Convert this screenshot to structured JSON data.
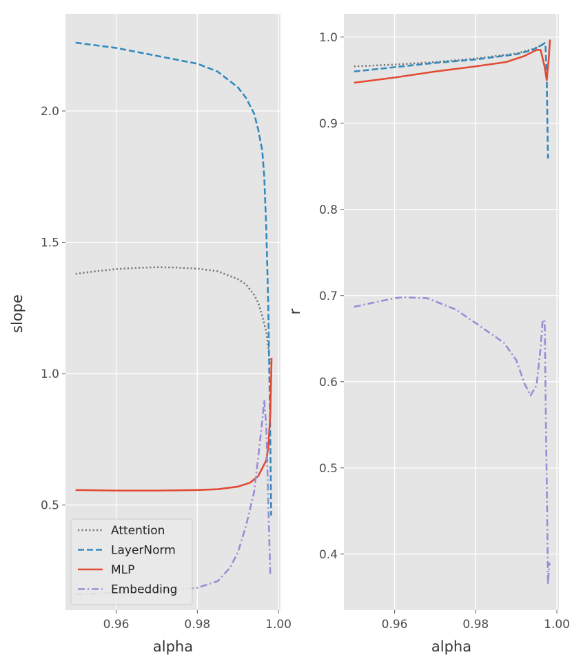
{
  "chart_data": [
    {
      "type": "line",
      "xlabel": "alpha",
      "ylabel": "slope",
      "xlim": [
        0.9475,
        1.0005
      ],
      "ylim": [
        0.1,
        2.37
      ],
      "xticks": [
        0.96,
        0.98,
        1.0
      ],
      "xtick_labels": [
        "0.96",
        "0.98",
        "1.00"
      ],
      "yticks": [
        0.5,
        1.0,
        1.5,
        2.0
      ],
      "ytick_labels": [
        "0.5",
        "1.0",
        "1.5",
        "2.0"
      ],
      "grid": true,
      "legend": {
        "position": "lower-left",
        "entries": [
          {
            "label": "Attention",
            "color": "#777777",
            "dash": "dotted"
          },
          {
            "label": "LayerNorm",
            "color": "#348abd",
            "dash": "dashed"
          },
          {
            "label": "MLP",
            "color": "#e24a33",
            "dash": "solid"
          },
          {
            "label": "Embedding",
            "color": "#988ed5",
            "dash": "dashdot"
          }
        ]
      },
      "series": [
        {
          "name": "Attention",
          "color": "#777777",
          "dash": "dotted",
          "x": [
            0.95,
            0.955,
            0.96,
            0.965,
            0.97,
            0.975,
            0.98,
            0.985,
            0.99,
            0.992,
            0.994,
            0.995,
            0.996,
            0.997,
            0.9975,
            0.998
          ],
          "y": [
            1.38,
            1.39,
            1.398,
            1.403,
            1.405,
            1.404,
            1.4,
            1.39,
            1.36,
            1.34,
            1.3,
            1.27,
            1.22,
            1.16,
            1.1,
            1.03
          ]
        },
        {
          "name": "LayerNorm",
          "color": "#348abd",
          "dash": "dashed",
          "x": [
            0.95,
            0.96,
            0.97,
            0.975,
            0.98,
            0.985,
            0.99,
            0.992,
            0.994,
            0.995,
            0.996,
            0.9965,
            0.997,
            0.9975,
            0.998,
            0.9982
          ],
          "y": [
            2.26,
            2.24,
            2.21,
            2.195,
            2.18,
            2.15,
            2.09,
            2.05,
            1.99,
            1.93,
            1.85,
            1.75,
            1.55,
            1.25,
            0.75,
            0.46
          ]
        },
        {
          "name": "MLP",
          "color": "#e24a33",
          "dash": "solid",
          "x": [
            0.95,
            0.96,
            0.97,
            0.98,
            0.985,
            0.99,
            0.993,
            0.995,
            0.996,
            0.997,
            0.9975,
            0.998,
            0.9983
          ],
          "y": [
            0.557,
            0.555,
            0.555,
            0.557,
            0.56,
            0.57,
            0.585,
            0.61,
            0.64,
            0.67,
            0.72,
            0.85,
            1.06
          ]
        },
        {
          "name": "Embedding",
          "color": "#988ed5",
          "dash": "dashdot",
          "x": [
            0.95,
            0.96,
            0.97,
            0.98,
            0.985,
            0.988,
            0.99,
            0.992,
            0.994,
            0.995,
            0.996,
            0.9965,
            0.997,
            0.9975,
            0.998
          ],
          "y": [
            0.16,
            0.165,
            0.17,
            0.185,
            0.21,
            0.26,
            0.32,
            0.42,
            0.55,
            0.68,
            0.82,
            0.9,
            0.8,
            0.5,
            0.23
          ]
        }
      ]
    },
    {
      "type": "line",
      "xlabel": "alpha",
      "ylabel": "r",
      "xlim": [
        0.9475,
        1.0005
      ],
      "ylim": [
        0.335,
        1.027
      ],
      "xticks": [
        0.96,
        0.98,
        1.0
      ],
      "xtick_labels": [
        "0.96",
        "0.98",
        "1.00"
      ],
      "yticks": [
        0.4,
        0.5,
        0.6,
        0.7,
        0.8,
        0.9,
        1.0
      ],
      "ytick_labels": [
        "0.4",
        "0.5",
        "0.6",
        "0.7",
        "0.8",
        "0.9",
        "1.0"
      ],
      "grid": true,
      "series": [
        {
          "name": "Attention",
          "color": "#777777",
          "dash": "dotted",
          "x": [
            0.95,
            0.96,
            0.97,
            0.98,
            0.99,
            0.994,
            0.996,
            0.997
          ],
          "y": [
            0.966,
            0.968,
            0.971,
            0.975,
            0.981,
            0.986,
            0.99,
            0.993
          ]
        },
        {
          "name": "LayerNorm",
          "color": "#348abd",
          "dash": "dashed",
          "x": [
            0.95,
            0.96,
            0.97,
            0.98,
            0.99,
            0.994,
            0.996,
            0.997,
            0.9972,
            0.9975,
            0.9978,
            0.998
          ],
          "y": [
            0.96,
            0.965,
            0.97,
            0.974,
            0.98,
            0.985,
            0.99,
            0.993,
            0.99,
            0.95,
            0.86,
            0.862
          ]
        },
        {
          "name": "MLP",
          "color": "#e24a33",
          "dash": "solid",
          "x": [
            0.95,
            0.96,
            0.97,
            0.98,
            0.9875,
            0.992,
            0.995,
            0.996,
            0.997,
            0.9975,
            0.998,
            0.9983
          ],
          "y": [
            0.947,
            0.953,
            0.96,
            0.966,
            0.971,
            0.978,
            0.985,
            0.985,
            0.965,
            0.95,
            0.975,
            0.997
          ]
        },
        {
          "name": "Embedding",
          "color": "#988ed5",
          "dash": "dashdot",
          "x": [
            0.95,
            0.955,
            0.96,
            0.962,
            0.968,
            0.975,
            0.98,
            0.987,
            0.99,
            0.992,
            0.9935,
            0.995,
            0.996,
            0.9965,
            0.997,
            0.9973,
            0.9976,
            0.9978,
            0.998,
            0.9982
          ],
          "y": [
            0.687,
            0.692,
            0.697,
            0.698,
            0.697,
            0.684,
            0.668,
            0.645,
            0.625,
            0.598,
            0.584,
            0.596,
            0.64,
            0.672,
            0.67,
            0.55,
            0.45,
            0.365,
            0.38,
            0.39
          ]
        }
      ]
    }
  ]
}
